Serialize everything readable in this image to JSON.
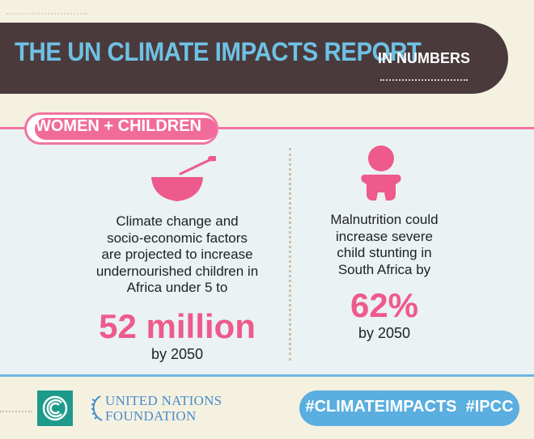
{
  "header": {
    "title": "THE UN CLIMATE IMPACTS REPORT",
    "subtitle": "IN NUMBERS"
  },
  "section": {
    "label": "WOMEN + CHILDREN"
  },
  "stats": [
    {
      "icon": "bowl-icon",
      "text_lines": [
        "Climate change and",
        "socio-economic factors",
        "are projected to increase",
        "undernourished children in",
        "Africa under 5 to"
      ],
      "value": "52 million",
      "year": "by 2050"
    },
    {
      "icon": "baby-icon",
      "text_lines": [
        "Malnutrition could",
        "increase severe",
        "child stunting in",
        "South Africa by"
      ],
      "value": "62%",
      "year": "by 2050"
    }
  ],
  "footer": {
    "org_line1": "UNITED NATIONS",
    "org_line2": "FOUNDATION",
    "hashtags": "#CLIMATEIMPACTS  #IPCC"
  },
  "colors": {
    "header_bg": "#4a3a3c",
    "title_blue": "#6ec1e4",
    "accent_pink": "#ee5a8c",
    "panel_bg": "#eaf2f3",
    "footer_blue": "#5aaee0",
    "logo_teal": "#1d9a8c"
  }
}
